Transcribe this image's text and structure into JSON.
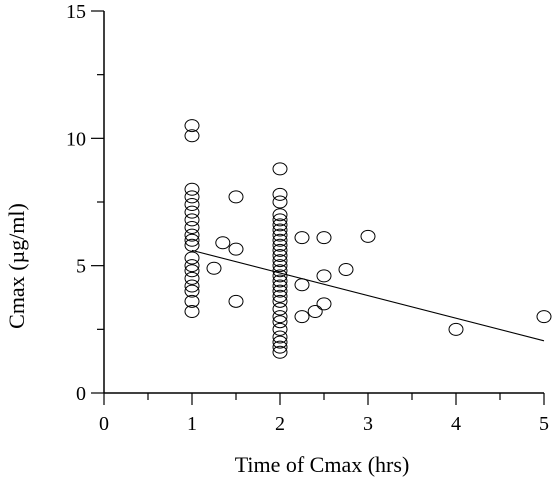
{
  "chart_data": {
    "type": "scatter",
    "xlabel": "Time of Cmax (hrs)",
    "ylabel": "Cmax (µg/ml)",
    "xlim": [
      0,
      5
    ],
    "ylim": [
      0,
      15
    ],
    "xticks": [
      0,
      1,
      2,
      3,
      4,
      5
    ],
    "yticks": [
      0,
      5,
      10,
      15
    ],
    "grid": false,
    "legend": "none",
    "series": [
      {
        "points": [
          [
            1,
            10.5
          ],
          [
            1,
            10.1
          ],
          [
            1,
            8.0
          ],
          [
            1,
            7.7
          ],
          [
            1,
            7.4
          ],
          [
            1,
            7.1
          ],
          [
            1,
            6.8
          ],
          [
            1,
            6.5
          ],
          [
            1,
            6.2
          ],
          [
            1,
            6.0
          ],
          [
            1,
            5.8
          ],
          [
            1,
            5.3
          ],
          [
            1,
            5.0
          ],
          [
            1,
            4.8
          ],
          [
            1,
            4.5
          ],
          [
            1,
            4.2
          ],
          [
            1,
            4.0
          ],
          [
            1,
            3.6
          ],
          [
            1,
            3.2
          ],
          [
            1.25,
            4.9
          ],
          [
            1.35,
            5.9
          ],
          [
            1.5,
            7.7
          ],
          [
            1.5,
            5.65
          ],
          [
            1.5,
            3.6
          ],
          [
            2,
            8.8
          ],
          [
            2,
            7.8
          ],
          [
            2,
            7.5
          ],
          [
            2,
            7.0
          ],
          [
            2,
            6.8
          ],
          [
            2,
            6.6
          ],
          [
            2,
            6.4
          ],
          [
            2,
            6.2
          ],
          [
            2,
            6.0
          ],
          [
            2,
            5.8
          ],
          [
            2,
            5.6
          ],
          [
            2,
            5.4
          ],
          [
            2,
            5.2
          ],
          [
            2,
            5.0
          ],
          [
            2,
            4.8
          ],
          [
            2,
            4.6
          ],
          [
            2,
            4.4
          ],
          [
            2,
            4.2
          ],
          [
            2,
            4.0
          ],
          [
            2,
            3.8
          ],
          [
            2,
            3.6
          ],
          [
            2,
            3.3
          ],
          [
            2,
            3.0
          ],
          [
            2,
            2.8
          ],
          [
            2,
            2.5
          ],
          [
            2,
            2.2
          ],
          [
            2,
            2.0
          ],
          [
            2,
            1.8
          ],
          [
            2,
            1.6
          ],
          [
            2.25,
            6.1
          ],
          [
            2.25,
            4.25
          ],
          [
            2.25,
            3.0
          ],
          [
            2.4,
            3.2
          ],
          [
            2.5,
            6.1
          ],
          [
            2.5,
            4.6
          ],
          [
            2.5,
            3.5
          ],
          [
            2.75,
            4.85
          ],
          [
            3,
            6.15
          ],
          [
            4,
            2.5
          ],
          [
            5,
            3.0
          ]
        ]
      }
    ],
    "regression_line": {
      "x": [
        1,
        5
      ],
      "y": [
        5.6,
        2.05
      ]
    }
  }
}
